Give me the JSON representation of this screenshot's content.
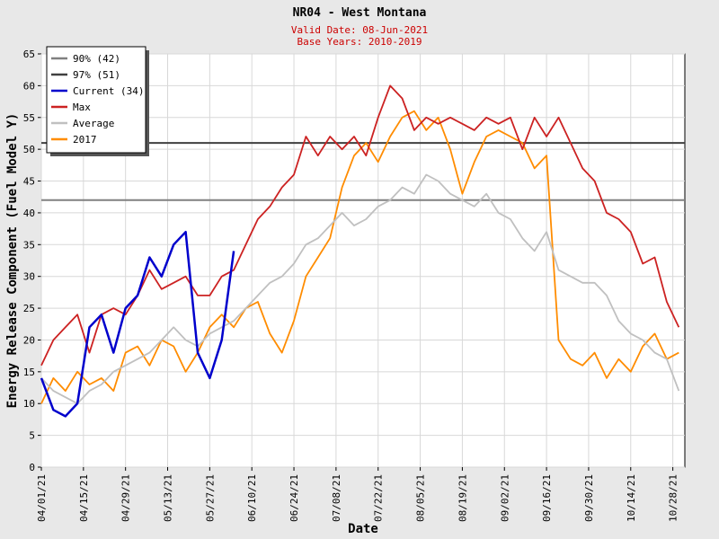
{
  "chart_data": {
    "type": "line",
    "title": "NR04 - West Montana",
    "subtitle": [
      "Valid Date: 08-Jun-2021",
      "Base Years: 2010-2019"
    ],
    "x_label": "Date",
    "y_label": "Energy Release Component (Fuel Model Y)",
    "x": [
      "04/01/21",
      "04/05/21",
      "04/09/21",
      "04/13/21",
      "04/17/21",
      "04/21/21",
      "04/25/21",
      "04/29/21",
      "05/03/21",
      "05/07/21",
      "05/11/21",
      "05/15/21",
      "05/19/21",
      "05/23/21",
      "05/27/21",
      "05/31/21",
      "06/04/21",
      "06/08/21",
      "06/12/21",
      "06/16/21",
      "06/20/21",
      "06/24/21",
      "06/28/21",
      "07/02/21",
      "07/06/21",
      "07/10/21",
      "07/14/21",
      "07/18/21",
      "07/22/21",
      "07/26/21",
      "07/30/21",
      "08/03/21",
      "08/07/21",
      "08/11/21",
      "08/15/21",
      "08/19/21",
      "08/23/21",
      "08/27/21",
      "08/31/21",
      "09/04/21",
      "09/08/21",
      "09/12/21",
      "09/16/21",
      "09/20/21",
      "09/24/21",
      "09/28/21",
      "10/02/21",
      "10/06/21",
      "10/10/21",
      "10/14/21",
      "10/18/21",
      "10/22/21",
      "10/26/21",
      "10/30/21"
    ],
    "xlim": [
      "04/01/21",
      "11/01/21"
    ],
    "xticks": [
      "04/01/21",
      "04/15/21",
      "04/29/21",
      "05/13/21",
      "05/27/21",
      "06/10/21",
      "06/24/21",
      "07/08/21",
      "07/22/21",
      "08/05/21",
      "08/19/21",
      "09/02/21",
      "09/16/21",
      "09/30/21",
      "10/14/21",
      "10/28/21"
    ],
    "ylim": [
      0,
      65
    ],
    "yticks": [
      0,
      5,
      10,
      15,
      20,
      25,
      30,
      35,
      40,
      45,
      50,
      55,
      60,
      65
    ],
    "grid": true,
    "legend": "upper left",
    "lines": [
      {
        "name": "90% (42)",
        "color": "#808080",
        "value": 42
      },
      {
        "name": "97% (51)",
        "color": "#404040",
        "value": 51
      }
    ],
    "series": [
      {
        "name": "Current (34)",
        "color": "#0000cc",
        "values": [
          14,
          9,
          8,
          10,
          22,
          24,
          18,
          25,
          27,
          33,
          30,
          35,
          37,
          18,
          14,
          20,
          34,
          null,
          null,
          null,
          null,
          null,
          null,
          null,
          null,
          null,
          null,
          null,
          null,
          null,
          null,
          null,
          null,
          null,
          null,
          null,
          null,
          null,
          null,
          null,
          null,
          null,
          null,
          null,
          null,
          null,
          null,
          null,
          null,
          null,
          null,
          null,
          null,
          null
        ]
      },
      {
        "name": "Max",
        "color": "#cc2222",
        "values": [
          16,
          20,
          22,
          24,
          18,
          24,
          25,
          24,
          27,
          31,
          28,
          29,
          30,
          27,
          27,
          30,
          31,
          35,
          39,
          41,
          44,
          46,
          52,
          49,
          52,
          50,
          52,
          49,
          55,
          60,
          58,
          53,
          55,
          54,
          55,
          54,
          53,
          55,
          54,
          55,
          50,
          55,
          52,
          55,
          51,
          47,
          45,
          40,
          39,
          37,
          32,
          33,
          26,
          22
        ]
      },
      {
        "name": "Average",
        "color": "#c0c0c0",
        "values": [
          14,
          12,
          11,
          10,
          12,
          13,
          15,
          16,
          17,
          18,
          20,
          22,
          20,
          19,
          21,
          22,
          23,
          25,
          27,
          29,
          30,
          32,
          35,
          36,
          38,
          40,
          38,
          39,
          41,
          42,
          44,
          43,
          46,
          45,
          43,
          42,
          41,
          43,
          40,
          39,
          36,
          34,
          37,
          31,
          30,
          29,
          29,
          27,
          23,
          21,
          20,
          18,
          17,
          12
        ]
      },
      {
        "name": "2017",
        "color": "#ff8c00",
        "values": [
          10,
          14,
          12,
          15,
          13,
          14,
          12,
          18,
          19,
          16,
          20,
          19,
          15,
          18,
          22,
          24,
          22,
          25,
          26,
          21,
          18,
          23,
          30,
          33,
          36,
          44,
          49,
          51,
          48,
          52,
          55,
          56,
          53,
          55,
          50,
          43,
          48,
          52,
          53,
          52,
          51,
          47,
          49,
          20,
          17,
          16,
          18,
          14,
          17,
          15,
          19,
          21,
          17,
          18
        ]
      }
    ]
  }
}
